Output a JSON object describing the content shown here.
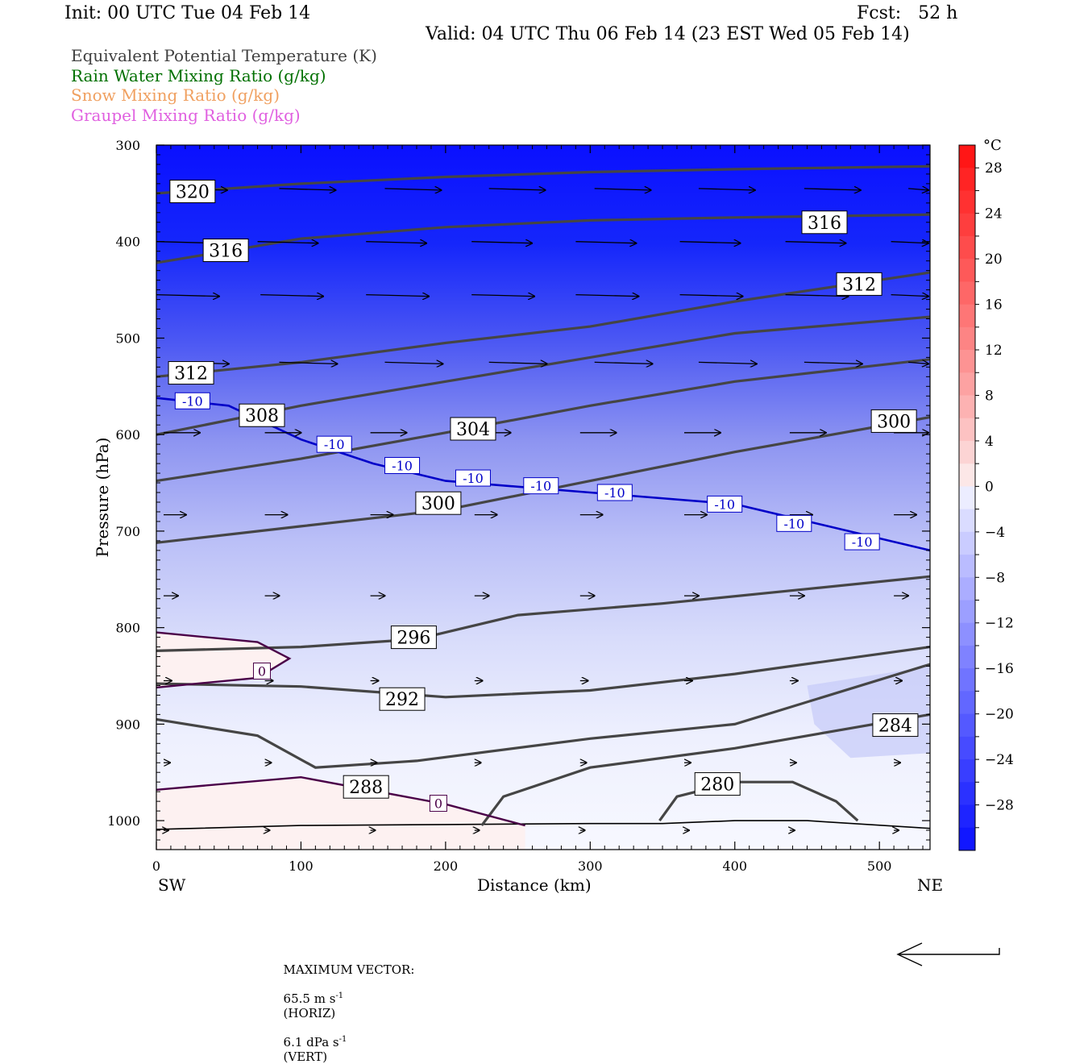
{
  "header": {
    "init": "Init: 00 UTC Tue 04 Feb 14",
    "fcst": "Fcst:   52 h",
    "valid": "Valid: 04 UTC Thu 06 Feb 14 (23 EST Wed 05 Feb 14)"
  },
  "legend": [
    {
      "text": "Equivalent Potential Temperature (K)",
      "color": "#404040"
    },
    {
      "text": "Rain Water Mixing Ratio (g/kg)",
      "color": "#007000"
    },
    {
      "text": "Snow Mixing Ratio (g/kg)",
      "color": "#f0a060"
    },
    {
      "text": "Graupel Mixing Ratio (g/kg)",
      "color": "#e060e0"
    }
  ],
  "chart_data": {
    "type": "contour",
    "xlabel": "Distance (km)",
    "ylabel": "Pressure (hPa)",
    "xlim": [
      0,
      535
    ],
    "ylim": [
      1030,
      300
    ],
    "xticks": [
      0,
      100,
      200,
      300,
      400,
      500
    ],
    "yticks": [
      300,
      400,
      500,
      600,
      700,
      800,
      900,
      1000
    ],
    "left_label": "SW",
    "right_label": "NE",
    "colorbar": {
      "unit": "°C",
      "ticks": [
        28,
        24,
        20,
        16,
        12,
        8,
        4,
        0,
        -4,
        -8,
        -12,
        -16,
        -20,
        -24,
        -28
      ],
      "levels": [
        30,
        28,
        26,
        24,
        22,
        20,
        18,
        16,
        14,
        12,
        10,
        8,
        6,
        4,
        2,
        0,
        -2,
        -4,
        -6,
        -8,
        -10,
        -12,
        -14,
        -16,
        -18,
        -20,
        -22,
        -24,
        -26,
        -28,
        -30,
        -32
      ],
      "warm_color": "#ff1010",
      "cold_color": "#0a10ff"
    },
    "theta_e_contours": [
      {
        "label": "320",
        "points": [
          [
            0,
            350
          ],
          [
            100,
            340
          ],
          [
            200,
            333
          ],
          [
            300,
            328
          ],
          [
            400,
            325
          ],
          [
            535,
            322
          ]
        ],
        "label_at": [
          25,
          348
        ]
      },
      {
        "label": "316",
        "points": [
          [
            0,
            422
          ],
          [
            100,
            397
          ],
          [
            200,
            385
          ],
          [
            300,
            378
          ],
          [
            400,
            375
          ],
          [
            535,
            372
          ]
        ],
        "label_at": [
          48,
          409
        ]
      },
      {
        "label": "316",
        "points": [],
        "label_at": [
          462,
          380
        ]
      },
      {
        "label": "312",
        "points": [
          [
            0,
            540
          ],
          [
            100,
            525
          ],
          [
            200,
            505
          ],
          [
            300,
            488
          ],
          [
            400,
            462
          ],
          [
            535,
            432
          ]
        ],
        "label_at": [
          24,
          536
        ]
      },
      {
        "label": "312",
        "points": [],
        "label_at": [
          486,
          444
        ]
      },
      {
        "label": "308",
        "points": [
          [
            0,
            600
          ],
          [
            100,
            570
          ],
          [
            200,
            545
          ],
          [
            300,
            520
          ],
          [
            400,
            495
          ],
          [
            535,
            478
          ]
        ],
        "label_at": [
          73,
          580
        ]
      },
      {
        "label": "304",
        "points": [
          [
            0,
            648
          ],
          [
            100,
            625
          ],
          [
            200,
            598
          ],
          [
            300,
            570
          ],
          [
            400,
            545
          ],
          [
            535,
            522
          ]
        ],
        "label_at": [
          219,
          594
        ]
      },
      {
        "label": "300",
        "points": [
          [
            0,
            712
          ],
          [
            100,
            695
          ],
          [
            200,
            678
          ],
          [
            300,
            648
          ],
          [
            400,
            618
          ],
          [
            535,
            582
          ]
        ],
        "label_at": [
          195,
          671
        ]
      },
      {
        "label": "300",
        "points": [],
        "label_at": [
          510,
          586
        ]
      },
      {
        "label": "296",
        "points": [
          [
            0,
            824
          ],
          [
            100,
            820
          ],
          [
            180,
            812
          ],
          [
            250,
            787
          ],
          [
            350,
            775
          ],
          [
            450,
            760
          ],
          [
            535,
            747
          ]
        ],
        "label_at": [
          178,
          810
        ]
      },
      {
        "label": "292",
        "points": [
          [
            0,
            858
          ],
          [
            100,
            861
          ],
          [
            200,
            872
          ],
          [
            300,
            865
          ],
          [
            400,
            848
          ],
          [
            535,
            820
          ]
        ],
        "label_at": [
          170,
          874
        ]
      },
      {
        "label": "288",
        "points": [
          [
            0,
            895
          ],
          [
            70,
            912
          ],
          [
            110,
            945
          ],
          [
            180,
            938
          ],
          [
            300,
            915
          ],
          [
            400,
            900
          ],
          [
            535,
            838
          ]
        ],
        "label_at": [
          145,
          965
        ]
      },
      {
        "label": "284",
        "points": [
          [
            225,
            1005
          ],
          [
            240,
            975
          ],
          [
            300,
            945
          ],
          [
            400,
            925
          ],
          [
            535,
            890
          ]
        ],
        "label_at": [
          511,
          901
        ]
      },
      {
        "label": "280",
        "points": [
          [
            348,
            1000
          ],
          [
            360,
            975
          ],
          [
            400,
            960
          ],
          [
            440,
            960
          ],
          [
            470,
            980
          ],
          [
            485,
            1000
          ]
        ],
        "label_at": [
          388,
          962
        ]
      }
    ],
    "temperature_contours": [
      {
        "label": "-10",
        "color": "#0000c8",
        "points": [
          [
            0,
            562
          ],
          [
            50,
            570
          ],
          [
            100,
            605
          ],
          [
            150,
            630
          ],
          [
            200,
            648
          ],
          [
            300,
            660
          ],
          [
            400,
            672
          ],
          [
            535,
            720
          ]
        ],
        "label_positions": [
          [
            25,
            565
          ],
          [
            123,
            610
          ],
          [
            170,
            632
          ],
          [
            219,
            645
          ],
          [
            266,
            653
          ],
          [
            317,
            660
          ],
          [
            393,
            672
          ],
          [
            441,
            692
          ],
          [
            488,
            711
          ]
        ]
      },
      {
        "label": "0",
        "color": "#4a0048",
        "points": [
          [
            0,
            805
          ],
          [
            70,
            815
          ],
          [
            92,
            832
          ],
          [
            70,
            852
          ],
          [
            0,
            862
          ]
        ],
        "label_positions": [
          [
            73,
            845
          ]
        ]
      },
      {
        "label": "0",
        "color": "#4a0048",
        "points": [
          [
            0,
            968
          ],
          [
            100,
            955
          ],
          [
            200,
            983
          ],
          [
            255,
            1005
          ]
        ],
        "label_positions": [
          [
            195,
            982
          ]
        ]
      }
    ],
    "max_vector": {
      "label": "MAXIMUM VECTOR:",
      "horiz_value": "65.5 m s",
      "horiz_unit": "(HORIZ)",
      "vert_value": "6.1 dPa s",
      "vert_unit": "(VERT)",
      "exponent": "-1"
    }
  }
}
